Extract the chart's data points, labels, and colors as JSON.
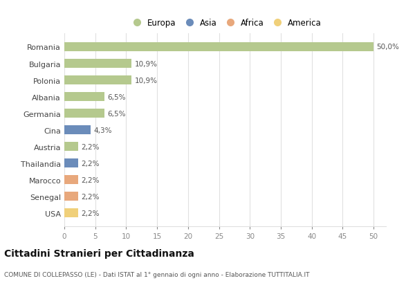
{
  "countries": [
    "Romania",
    "Bulgaria",
    "Polonia",
    "Albania",
    "Germania",
    "Cina",
    "Austria",
    "Thailandia",
    "Marocco",
    "Senegal",
    "USA"
  ],
  "values": [
    50.0,
    10.9,
    10.9,
    6.5,
    6.5,
    4.3,
    2.2,
    2.2,
    2.2,
    2.2,
    2.2
  ],
  "labels": [
    "50,0%",
    "10,9%",
    "10,9%",
    "6,5%",
    "6,5%",
    "4,3%",
    "2,2%",
    "2,2%",
    "2,2%",
    "2,2%",
    "2,2%"
  ],
  "continent": [
    "Europa",
    "Europa",
    "Europa",
    "Europa",
    "Europa",
    "Asia",
    "Europa",
    "Asia",
    "Africa",
    "Africa",
    "America"
  ],
  "colors": {
    "Europa": "#b5c98e",
    "Asia": "#6b8cba",
    "Africa": "#e8a87c",
    "America": "#f0d07a"
  },
  "legend_labels": [
    "Europa",
    "Asia",
    "Africa",
    "America"
  ],
  "legend_colors": [
    "#b5c98e",
    "#6b8cba",
    "#e8a87c",
    "#f0d07a"
  ],
  "xlim": [
    0,
    52
  ],
  "xticks": [
    0,
    5,
    10,
    15,
    20,
    25,
    30,
    35,
    40,
    45,
    50
  ],
  "title": "Cittadini Stranieri per Cittadinanza",
  "subtitle": "COMUNE DI COLLEPASSO (LE) - Dati ISTAT al 1° gennaio di ogni anno - Elaborazione TUTTITALIA.IT",
  "background_color": "#ffffff",
  "grid_color": "#e0e0e0",
  "bar_height": 0.55
}
